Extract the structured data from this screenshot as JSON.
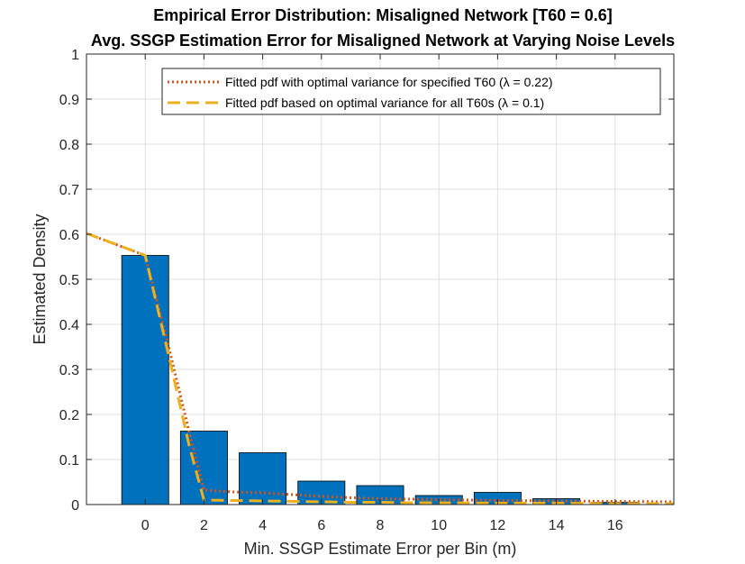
{
  "chart_data": {
    "type": "bar",
    "title": "Empirical Error Distribution: Misaligned Network [T60 = 0.6]",
    "subtitle": "Avg. SSGP Estimation Error for Misaligned Network at Varying Noise Levels",
    "xlabel": "Min. SSGP Estimate Error per Bin (m)",
    "ylabel": "Estimated Density",
    "xlim": [
      -2,
      18
    ],
    "ylim": [
      0,
      1
    ],
    "xticks": [
      0,
      2,
      4,
      6,
      8,
      10,
      12,
      14,
      16
    ],
    "yticks": [
      0,
      0.1,
      0.2,
      0.3,
      0.4,
      0.5,
      0.6,
      0.7,
      0.8,
      0.9,
      1
    ],
    "xtick_labels": [
      "0",
      "2",
      "4",
      "6",
      "8",
      "10",
      "12",
      "14",
      "16"
    ],
    "ytick_labels": [
      "0",
      "0.1",
      "0.2",
      "0.3",
      "0.4",
      "0.5",
      "0.6",
      "0.7",
      "0.8",
      "0.9",
      "1"
    ],
    "grid": true,
    "legend_position": "top-right",
    "bars": {
      "x": [
        0,
        2,
        4,
        6,
        8,
        10,
        12,
        14,
        16
      ],
      "values": [
        0.553,
        0.163,
        0.115,
        0.052,
        0.042,
        0.02,
        0.027,
        0.013,
        0.005
      ],
      "width": 1.6,
      "color": "#0072BD"
    },
    "series": [
      {
        "name": "Fitted pdf with optimal variance for specified T60  (λ = 0.22)",
        "style": "dotted",
        "color": "#D95319",
        "x": [
          -2,
          0,
          0.8,
          1.5,
          2,
          3,
          4,
          5,
          6,
          7,
          8,
          9,
          10,
          12,
          14,
          16,
          18
        ],
        "y": [
          0.602,
          0.553,
          0.35,
          0.16,
          0.032,
          0.028,
          0.026,
          0.022,
          0.018,
          0.015,
          0.013,
          0.012,
          0.011,
          0.009,
          0.008,
          0.007,
          0.006
        ]
      },
      {
        "name": "Fitted pdf based on optimal variance for all T60s (λ = 0.1)",
        "style": "dashed",
        "color": "#EDB120",
        "x": [
          -2,
          0,
          0.8,
          1.5,
          2,
          3,
          4,
          5,
          6,
          7,
          8,
          9,
          10,
          12,
          14,
          16,
          18
        ],
        "y": [
          0.602,
          0.553,
          0.33,
          0.13,
          0.01,
          0.009,
          0.008,
          0.007,
          0.006,
          0.005,
          0.005,
          0.004,
          0.004,
          0.003,
          0.003,
          0.002,
          0.002
        ]
      }
    ]
  }
}
